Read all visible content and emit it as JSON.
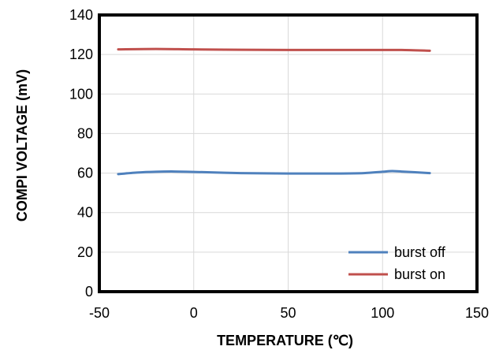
{
  "chart_data": {
    "type": "line",
    "title": "",
    "xlabel": "TEMPERATURE  (℃)",
    "ylabel": "COMPI VOLTAGE  (mV)",
    "xlim": [
      -50,
      150
    ],
    "ylim": [
      0,
      140
    ],
    "xticks": [
      -50,
      0,
      50,
      100,
      150
    ],
    "yticks": [
      0,
      20,
      40,
      60,
      80,
      100,
      120,
      140
    ],
    "grid": true,
    "legend_position": "bottom-right",
    "series": [
      {
        "name": "burst off",
        "color": "#4f81bd",
        "x": [
          -40,
          -30,
          -20,
          -10,
          0,
          25,
          50,
          75,
          90,
          100,
          105,
          110,
          125
        ],
        "y": [
          59.5,
          60.3,
          60.7,
          60.8,
          60.6,
          60.0,
          59.8,
          59.8,
          60.0,
          60.7,
          61.0,
          60.8,
          60.0
        ]
      },
      {
        "name": "burst on",
        "color": "#c0504d",
        "x": [
          -40,
          -20,
          0,
          25,
          50,
          75,
          100,
          110,
          125
        ],
        "y": [
          122.6,
          122.8,
          122.6,
          122.4,
          122.3,
          122.3,
          122.3,
          122.3,
          121.9
        ]
      }
    ]
  }
}
